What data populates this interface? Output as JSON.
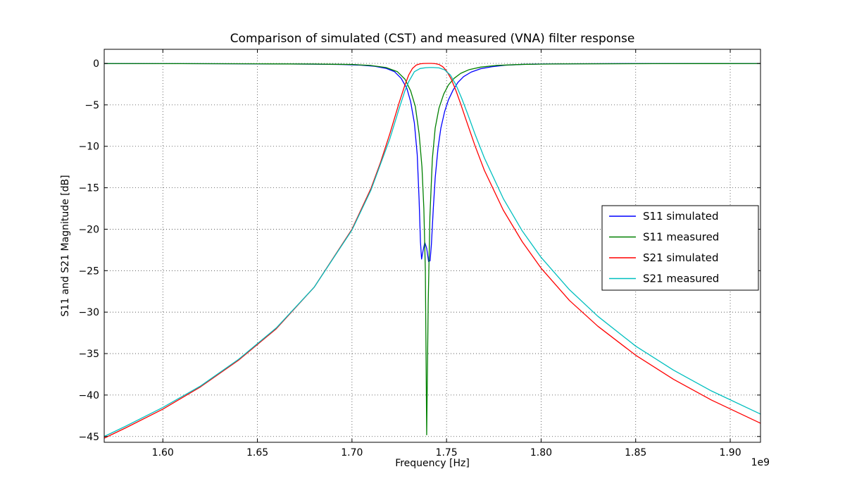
{
  "chart_data": {
    "type": "line",
    "title": "Comparison of simulated (CST) and measured (VNA) filter response",
    "xlabel": "Frequency [Hz]",
    "ylabel": "S11 and S21 Magnitude [dB]",
    "x_offset_label": "1e9",
    "x_unit": "GHz (axis shown as Hz x 1e9)",
    "xlim": [
      1.569,
      1.916
    ],
    "ylim": [
      -45.7,
      1.7
    ],
    "xticks": [
      1.6,
      1.65,
      1.7,
      1.75,
      1.8,
      1.85,
      1.9
    ],
    "yticks": [
      0,
      -5,
      -10,
      -15,
      -20,
      -25,
      -30,
      -35,
      -40,
      -45
    ],
    "grid": true,
    "grid_style": "dotted",
    "legend_position": "center right",
    "series": [
      {
        "name": "S11 simulated",
        "color": "#0000ff",
        "points": [
          [
            1.569,
            -0.02
          ],
          [
            1.6,
            -0.03
          ],
          [
            1.63,
            -0.04
          ],
          [
            1.66,
            -0.06
          ],
          [
            1.68,
            -0.09
          ],
          [
            1.695,
            -0.13
          ],
          [
            1.705,
            -0.22
          ],
          [
            1.712,
            -0.35
          ],
          [
            1.718,
            -0.6
          ],
          [
            1.7225,
            -1.0
          ],
          [
            1.726,
            -1.8
          ],
          [
            1.729,
            -3.0
          ],
          [
            1.731,
            -4.6
          ],
          [
            1.733,
            -7.2
          ],
          [
            1.7345,
            -11.0
          ],
          [
            1.7355,
            -16.5
          ],
          [
            1.7362,
            -21.5
          ],
          [
            1.7368,
            -23.6
          ],
          [
            1.7375,
            -22.7
          ],
          [
            1.7385,
            -21.6
          ],
          [
            1.7395,
            -22.3
          ],
          [
            1.7405,
            -23.9
          ],
          [
            1.7413,
            -23.8
          ],
          [
            1.742,
            -21.8
          ],
          [
            1.743,
            -17.5
          ],
          [
            1.744,
            -13.8
          ],
          [
            1.7455,
            -10.2
          ],
          [
            1.747,
            -7.8
          ],
          [
            1.749,
            -5.8
          ],
          [
            1.751,
            -4.4
          ],
          [
            1.7535,
            -3.2
          ],
          [
            1.756,
            -2.3
          ],
          [
            1.759,
            -1.6
          ],
          [
            1.763,
            -1.05
          ],
          [
            1.768,
            -0.65
          ],
          [
            1.774,
            -0.4
          ],
          [
            1.781,
            -0.22
          ],
          [
            1.79,
            -0.12
          ],
          [
            1.8,
            -0.07
          ],
          [
            1.82,
            -0.04
          ],
          [
            1.86,
            -0.02
          ],
          [
            1.916,
            -0.01
          ]
        ]
      },
      {
        "name": "S11 measured",
        "color": "#008000",
        "points": [
          [
            1.569,
            -0.02
          ],
          [
            1.61,
            -0.03
          ],
          [
            1.65,
            -0.05
          ],
          [
            1.68,
            -0.08
          ],
          [
            1.7,
            -0.13
          ],
          [
            1.71,
            -0.25
          ],
          [
            1.718,
            -0.5
          ],
          [
            1.724,
            -1.0
          ],
          [
            1.728,
            -1.9
          ],
          [
            1.731,
            -3.3
          ],
          [
            1.7335,
            -5.2
          ],
          [
            1.7355,
            -8.5
          ],
          [
            1.737,
            -12.5
          ],
          [
            1.738,
            -17.5
          ],
          [
            1.7388,
            -25.0
          ],
          [
            1.7395,
            -44.8
          ],
          [
            1.7403,
            -29.0
          ],
          [
            1.7412,
            -18.5
          ],
          [
            1.7425,
            -11.5
          ],
          [
            1.744,
            -7.8
          ],
          [
            1.746,
            -5.4
          ],
          [
            1.7485,
            -3.7
          ],
          [
            1.751,
            -2.6
          ],
          [
            1.754,
            -1.8
          ],
          [
            1.7575,
            -1.2
          ],
          [
            1.762,
            -0.75
          ],
          [
            1.768,
            -0.45
          ],
          [
            1.776,
            -0.25
          ],
          [
            1.79,
            -0.12
          ],
          [
            1.81,
            -0.06
          ],
          [
            1.86,
            -0.03
          ],
          [
            1.916,
            -0.02
          ]
        ]
      },
      {
        "name": "S21 simulated",
        "color": "#ff0000",
        "points": [
          [
            1.569,
            -45.2
          ],
          [
            1.58,
            -44.0
          ],
          [
            1.6,
            -41.7
          ],
          [
            1.62,
            -39.0
          ],
          [
            1.64,
            -35.8
          ],
          [
            1.66,
            -32.0
          ],
          [
            1.68,
            -27.0
          ],
          [
            1.7,
            -20.0
          ],
          [
            1.71,
            -15.1
          ],
          [
            1.715,
            -12.0
          ],
          [
            1.72,
            -8.5
          ],
          [
            1.725,
            -4.7
          ],
          [
            1.728,
            -2.6
          ],
          [
            1.73,
            -1.4
          ],
          [
            1.732,
            -0.6
          ],
          [
            1.734,
            -0.2
          ],
          [
            1.736,
            -0.05
          ],
          [
            1.738,
            -0.01
          ],
          [
            1.74,
            0.0
          ],
          [
            1.742,
            0.0
          ],
          [
            1.744,
            -0.03
          ],
          [
            1.746,
            -0.13
          ],
          [
            1.748,
            -0.4
          ],
          [
            1.75,
            -0.9
          ],
          [
            1.7525,
            -1.9
          ],
          [
            1.755,
            -3.3
          ],
          [
            1.7575,
            -4.9
          ],
          [
            1.76,
            -6.6
          ],
          [
            1.765,
            -9.9
          ],
          [
            1.77,
            -12.9
          ],
          [
            1.78,
            -17.7
          ],
          [
            1.79,
            -21.5
          ],
          [
            1.8,
            -24.7
          ],
          [
            1.815,
            -28.6
          ],
          [
            1.83,
            -31.7
          ],
          [
            1.85,
            -35.2
          ],
          [
            1.87,
            -38.1
          ],
          [
            1.89,
            -40.6
          ],
          [
            1.916,
            -43.4
          ]
        ]
      },
      {
        "name": "S21 measured",
        "color": "#00bfbf",
        "points": [
          [
            1.569,
            -45.0
          ],
          [
            1.58,
            -43.8
          ],
          [
            1.6,
            -41.5
          ],
          [
            1.62,
            -38.9
          ],
          [
            1.64,
            -35.7
          ],
          [
            1.66,
            -31.9
          ],
          [
            1.68,
            -27.0
          ],
          [
            1.7,
            -20.1
          ],
          [
            1.71,
            -15.3
          ],
          [
            1.72,
            -9.1
          ],
          [
            1.725,
            -5.4
          ],
          [
            1.728,
            -3.3
          ],
          [
            1.73,
            -2.2
          ],
          [
            1.733,
            -1.0
          ],
          [
            1.736,
            -0.62
          ],
          [
            1.739,
            -0.52
          ],
          [
            1.741,
            -0.5
          ],
          [
            1.743,
            -0.5
          ],
          [
            1.746,
            -0.54
          ],
          [
            1.749,
            -0.78
          ],
          [
            1.752,
            -1.4
          ],
          [
            1.755,
            -2.6
          ],
          [
            1.758,
            -4.2
          ],
          [
            1.761,
            -6.0
          ],
          [
            1.765,
            -8.5
          ],
          [
            1.77,
            -11.4
          ],
          [
            1.78,
            -16.3
          ],
          [
            1.79,
            -20.2
          ],
          [
            1.8,
            -23.4
          ],
          [
            1.815,
            -27.3
          ],
          [
            1.83,
            -30.5
          ],
          [
            1.85,
            -34.1
          ],
          [
            1.87,
            -37.0
          ],
          [
            1.89,
            -39.5
          ],
          [
            1.916,
            -42.3
          ]
        ]
      }
    ],
    "legend_entries": [
      "S11 simulated",
      "S11 measured",
      "S21 simulated",
      "S21 measured"
    ]
  }
}
